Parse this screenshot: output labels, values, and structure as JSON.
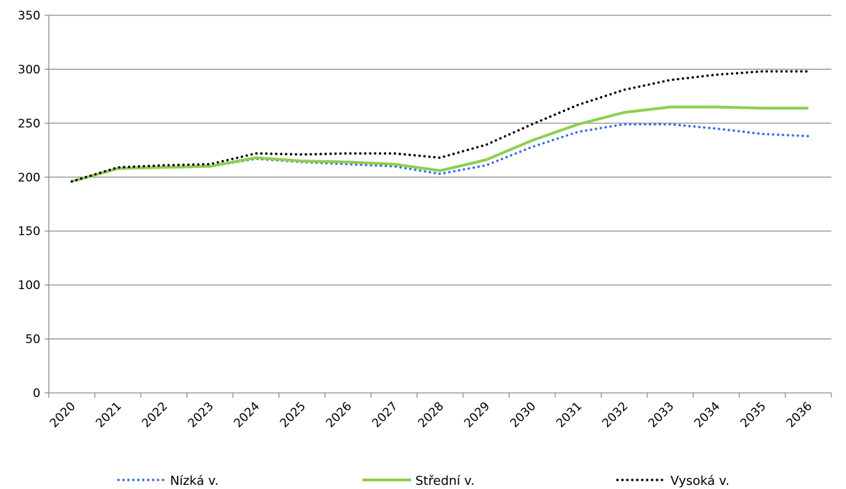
{
  "chart_data": {
    "type": "line",
    "title": "",
    "xlabel": "",
    "ylabel": "",
    "categories": [
      "2020",
      "2021",
      "2022",
      "2023",
      "2024",
      "2025",
      "2026",
      "2027",
      "2028",
      "2029",
      "2030",
      "2031",
      "2032",
      "2033",
      "2034",
      "2035",
      "2036"
    ],
    "y_ticks": [
      "0",
      "50",
      "100",
      "150",
      "200",
      "250",
      "300",
      "350"
    ],
    "ylim": [
      0,
      350
    ],
    "grid": "horizontal",
    "legend_position": "bottom",
    "series": [
      {
        "name": "Nízká v.",
        "color": "#3a6de0",
        "style": "dotted",
        "values": [
          196,
          208,
          209,
          210,
          217,
          214,
          212,
          210,
          203,
          211,
          228,
          242,
          249,
          249,
          245,
          240,
          238
        ]
      },
      {
        "name": "Střední v.",
        "color": "#8fce4f",
        "style": "solid",
        "values": [
          196,
          208,
          209,
          210,
          218,
          215,
          214,
          212,
          206,
          216,
          234,
          249,
          260,
          265,
          265,
          264,
          264
        ]
      },
      {
        "name": "Vysoká v.",
        "color": "#000000",
        "style": "dotted",
        "values": [
          196,
          209,
          211,
          212,
          222,
          221,
          222,
          222,
          218,
          230,
          249,
          267,
          281,
          290,
          295,
          298,
          298
        ]
      }
    ]
  }
}
